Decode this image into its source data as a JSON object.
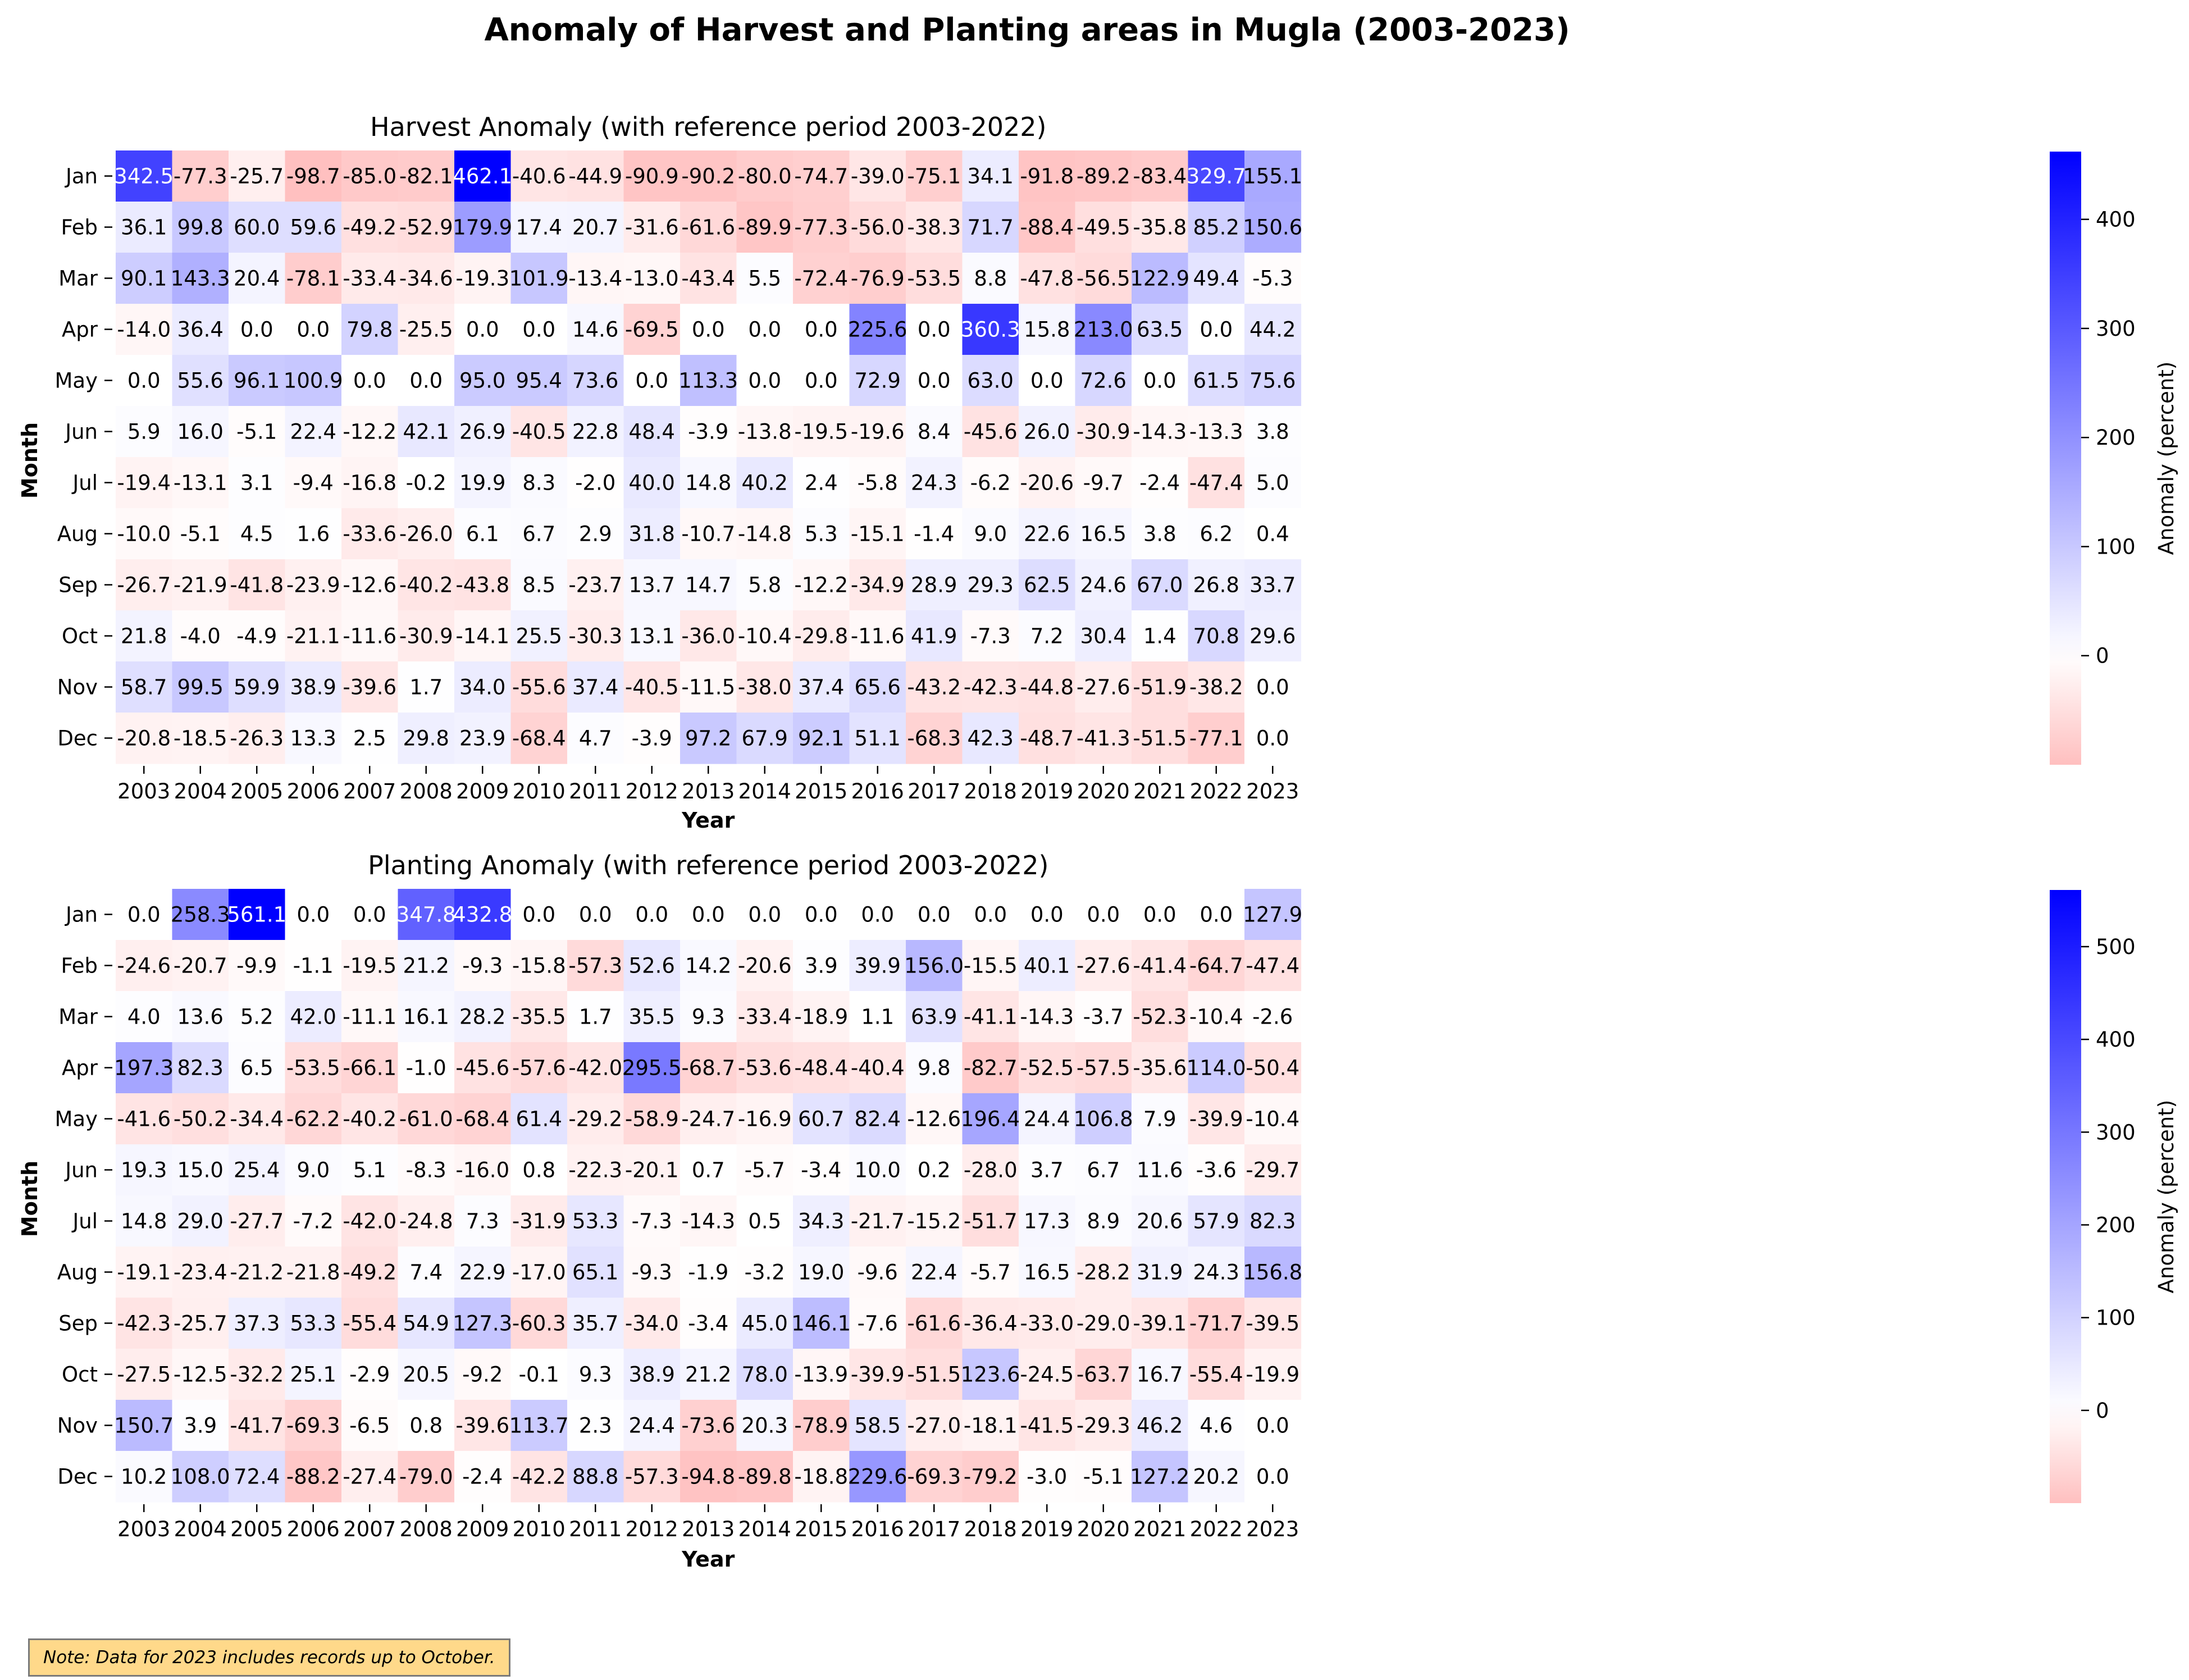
{
  "title": "Anomaly of Harvest and Planting areas in Mugla (2003-2023)",
  "note": "Note: Data for 2023 includes records up to October.",
  "colormap": {
    "negative": "#ff0000",
    "zero": "#ffffff",
    "positive": "#0000ff"
  },
  "chart_data": [
    {
      "type": "heatmap",
      "title": "Harvest Anomaly (with reference period 2003-2022)",
      "xlabel": "Year",
      "ylabel": "Month",
      "colorbar_label": "Anomaly (percent)",
      "colorbar_ticks": [
        0,
        100,
        200,
        300,
        400
      ],
      "vmin": -100,
      "vmax": 462.1,
      "x": [
        "2003",
        "2004",
        "2005",
        "2006",
        "2007",
        "2008",
        "2009",
        "2010",
        "2011",
        "2012",
        "2013",
        "2014",
        "2015",
        "2016",
        "2017",
        "2018",
        "2019",
        "2020",
        "2021",
        "2022",
        "2023"
      ],
      "y": [
        "Jan",
        "Feb",
        "Mar",
        "Apr",
        "May",
        "Jun",
        "Jul",
        "Aug",
        "Sep",
        "Oct",
        "Nov",
        "Dec"
      ],
      "values": [
        [
          342.5,
          -77.3,
          -25.7,
          -98.7,
          -85.0,
          -82.1,
          462.1,
          -40.6,
          -44.9,
          -90.9,
          -90.2,
          -80.0,
          -74.7,
          -39.0,
          -75.1,
          34.1,
          -91.8,
          -89.2,
          -83.4,
          329.7,
          155.1
        ],
        [
          36.1,
          99.8,
          60.0,
          59.6,
          -49.2,
          -52.9,
          179.9,
          17.4,
          20.7,
          -31.6,
          -61.6,
          -89.9,
          -77.3,
          -56.0,
          -38.3,
          71.7,
          -88.4,
          -49.5,
          -35.8,
          85.2,
          150.6
        ],
        [
          90.1,
          143.3,
          20.4,
          -78.1,
          -33.4,
          -34.6,
          -19.3,
          101.9,
          -13.4,
          -13.0,
          -43.4,
          5.5,
          -72.4,
          -76.9,
          -53.5,
          8.8,
          -47.8,
          -56.5,
          122.9,
          49.4,
          -5.3
        ],
        [
          -14.0,
          36.4,
          0.0,
          0.0,
          79.8,
          -25.5,
          0.0,
          0.0,
          14.6,
          -69.5,
          0.0,
          0.0,
          0.0,
          225.6,
          0.0,
          360.3,
          15.8,
          213.0,
          63.5,
          0.0,
          44.2
        ],
        [
          0.0,
          55.6,
          96.1,
          100.9,
          0.0,
          0.0,
          95.0,
          95.4,
          73.6,
          0.0,
          113.3,
          0.0,
          0.0,
          72.9,
          0.0,
          63.0,
          0.0,
          72.6,
          0.0,
          61.5,
          75.6
        ],
        [
          5.9,
          16.0,
          -5.1,
          22.4,
          -12.2,
          42.1,
          26.9,
          -40.5,
          22.8,
          48.4,
          -3.9,
          -13.8,
          -19.5,
          -19.6,
          8.4,
          -45.6,
          26.0,
          -30.9,
          -14.3,
          -13.3,
          3.8
        ],
        [
          -19.4,
          -13.1,
          3.1,
          -9.4,
          -16.8,
          -0.2,
          19.9,
          8.3,
          -2.0,
          40.0,
          14.8,
          40.2,
          2.4,
          -5.8,
          24.3,
          -6.2,
          -20.6,
          -9.7,
          -2.4,
          -47.4,
          5.0
        ],
        [
          -10.0,
          -5.1,
          4.5,
          1.6,
          -33.6,
          -26.0,
          6.1,
          6.7,
          2.9,
          31.8,
          -10.7,
          -14.8,
          5.3,
          -15.1,
          -1.4,
          9.0,
          22.6,
          16.5,
          3.8,
          6.2,
          0.4
        ],
        [
          -26.7,
          -21.9,
          -41.8,
          -23.9,
          -12.6,
          -40.2,
          -43.8,
          8.5,
          -23.7,
          13.7,
          14.7,
          5.8,
          -12.2,
          -34.9,
          28.9,
          29.3,
          62.5,
          24.6,
          67.0,
          26.8,
          33.7
        ],
        [
          21.8,
          -4.0,
          -4.9,
          -21.1,
          -11.6,
          -30.9,
          -14.1,
          25.5,
          -30.3,
          13.1,
          -36.0,
          -10.4,
          -29.8,
          -11.6,
          41.9,
          -7.3,
          7.2,
          30.4,
          1.4,
          70.8,
          29.6
        ],
        [
          58.7,
          99.5,
          59.9,
          38.9,
          -39.6,
          1.7,
          34.0,
          -55.6,
          37.4,
          -40.5,
          -11.5,
          -38.0,
          37.4,
          65.6,
          -43.2,
          -42.3,
          -44.8,
          -27.6,
          -51.9,
          -38.2,
          0.0
        ],
        [
          -20.8,
          -18.5,
          -26.3,
          13.3,
          2.5,
          29.8,
          23.9,
          -68.4,
          4.7,
          -3.9,
          97.2,
          67.9,
          92.1,
          51.1,
          -68.3,
          42.3,
          -48.7,
          -41.3,
          -51.5,
          -77.1,
          0.0
        ]
      ]
    },
    {
      "type": "heatmap",
      "title": "Planting Anomaly (with reference period 2003-2022)",
      "xlabel": "Year",
      "ylabel": "Month",
      "colorbar_label": "Anomaly (percent)",
      "colorbar_ticks": [
        0,
        100,
        200,
        300,
        400,
        500
      ],
      "vmin": -100,
      "vmax": 561.1,
      "x": [
        "2003",
        "2004",
        "2005",
        "2006",
        "2007",
        "2008",
        "2009",
        "2010",
        "2011",
        "2012",
        "2013",
        "2014",
        "2015",
        "2016",
        "2017",
        "2018",
        "2019",
        "2020",
        "2021",
        "2022",
        "2023"
      ],
      "y": [
        "Jan",
        "Feb",
        "Mar",
        "Apr",
        "May",
        "Jun",
        "Jul",
        "Aug",
        "Sep",
        "Oct",
        "Nov",
        "Dec"
      ],
      "values": [
        [
          0.0,
          258.3,
          561.1,
          0.0,
          0.0,
          347.8,
          432.8,
          0.0,
          0.0,
          0.0,
          0.0,
          0.0,
          0.0,
          0.0,
          0.0,
          0.0,
          0.0,
          0.0,
          0.0,
          0.0,
          127.9
        ],
        [
          -24.6,
          -20.7,
          -9.9,
          -1.1,
          -19.5,
          21.2,
          -9.3,
          -15.8,
          -57.3,
          52.6,
          14.2,
          -20.6,
          3.9,
          39.9,
          156.0,
          -15.5,
          40.1,
          -27.6,
          -41.4,
          -64.7,
          -47.4
        ],
        [
          4.0,
          13.6,
          5.2,
          42.0,
          -11.1,
          16.1,
          28.2,
          -35.5,
          1.7,
          35.5,
          9.3,
          -33.4,
          -18.9,
          1.1,
          63.9,
          -41.1,
          -14.3,
          -3.7,
          -52.3,
          -10.4,
          -2.6
        ],
        [
          197.3,
          82.3,
          6.5,
          -53.5,
          -66.1,
          -1.0,
          -45.6,
          -57.6,
          -42.0,
          295.5,
          -68.7,
          -53.6,
          -48.4,
          -40.4,
          9.8,
          -82.7,
          -52.5,
          -57.5,
          -35.6,
          114.0,
          -50.4
        ],
        [
          -41.6,
          -50.2,
          -34.4,
          -62.2,
          -40.2,
          -61.0,
          -68.4,
          61.4,
          -29.2,
          -58.9,
          -24.7,
          -16.9,
          60.7,
          82.4,
          -12.6,
          196.4,
          24.4,
          106.8,
          7.9,
          -39.9,
          -10.4
        ],
        [
          19.3,
          15.0,
          25.4,
          9.0,
          5.1,
          -8.3,
          -16.0,
          0.8,
          -22.3,
          -20.1,
          0.7,
          -5.7,
          -3.4,
          10.0,
          0.2,
          -28.0,
          3.7,
          6.7,
          11.6,
          -3.6,
          -29.7
        ],
        [
          14.8,
          29.0,
          -27.7,
          -7.2,
          -42.0,
          -24.8,
          7.3,
          -31.9,
          53.3,
          -7.3,
          -14.3,
          0.5,
          34.3,
          -21.7,
          -15.2,
          -51.7,
          17.3,
          8.9,
          20.6,
          57.9,
          82.3
        ],
        [
          -19.1,
          -23.4,
          -21.2,
          -21.8,
          -49.2,
          7.4,
          22.9,
          -17.0,
          65.1,
          -9.3,
          -1.9,
          -3.2,
          19.0,
          -9.6,
          22.4,
          -5.7,
          16.5,
          -28.2,
          31.9,
          24.3,
          156.8
        ],
        [
          -42.3,
          -25.7,
          37.3,
          53.3,
          -55.4,
          54.9,
          127.3,
          -60.3,
          35.7,
          -34.0,
          -3.4,
          45.0,
          146.1,
          -7.6,
          -61.6,
          -36.4,
          -33.0,
          -29.0,
          -39.1,
          -71.7,
          -39.5
        ],
        [
          -27.5,
          -12.5,
          -32.2,
          25.1,
          -2.9,
          20.5,
          -9.2,
          -0.1,
          9.3,
          38.9,
          21.2,
          78.0,
          -13.9,
          -39.9,
          -51.5,
          123.6,
          -24.5,
          -63.7,
          16.7,
          -55.4,
          -19.9
        ],
        [
          150.7,
          3.9,
          -41.7,
          -69.3,
          -6.5,
          0.8,
          -39.6,
          113.7,
          2.3,
          24.4,
          -73.6,
          20.3,
          -78.9,
          58.5,
          -27.0,
          -18.1,
          -41.5,
          -29.3,
          46.2,
          4.6,
          0.0
        ],
        [
          10.2,
          108.0,
          72.4,
          -88.2,
          -27.4,
          -79.0,
          -2.4,
          -42.2,
          88.8,
          -57.3,
          -94.8,
          -89.8,
          -18.8,
          229.6,
          -69.3,
          -79.2,
          -3.0,
          -5.1,
          127.2,
          20.2,
          0.0
        ]
      ]
    }
  ]
}
